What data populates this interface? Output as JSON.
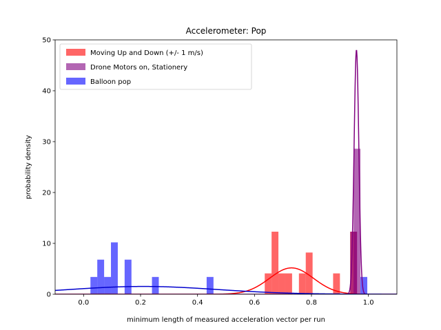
{
  "chart_data": {
    "type": "bar",
    "title": "Accelerometer: Pop",
    "xlabel": "minimum length of measured acceleration vector per run",
    "ylabel": "probability density",
    "xlim": [
      -0.1,
      1.1
    ],
    "ylim": [
      0,
      50
    ],
    "xticks": [
      "0.0",
      "0.2",
      "0.4",
      "0.6",
      "0.8",
      "1.0"
    ],
    "yticks": [
      "0",
      "10",
      "20",
      "30",
      "40",
      "50"
    ],
    "grid": false,
    "legend_position": "top-left",
    "bin_width": 0.024,
    "series": [
      {
        "name": "Moving Up and Down (+/- 1 m/s)",
        "kind": "histogram",
        "color": "#ff0000",
        "bins": [
          {
            "x0": 0.636,
            "height": 4.1
          },
          {
            "x0": 0.66,
            "height": 12.3
          },
          {
            "x0": 0.684,
            "height": 4.1
          },
          {
            "x0": 0.708,
            "height": 4.1
          },
          {
            "x0": 0.756,
            "height": 4.1
          },
          {
            "x0": 0.78,
            "height": 8.2
          },
          {
            "x0": 0.876,
            "height": 4.1
          },
          {
            "x0": 0.936,
            "height": 12.3
          }
        ]
      },
      {
        "name": "Drone Motors on, Stationery",
        "kind": "histogram",
        "color": "#800080",
        "bins": [
          {
            "x0": 0.936,
            "height": 12.3
          },
          {
            "x0": 0.948,
            "height": 28.6
          }
        ]
      },
      {
        "name": "Balloon pop",
        "kind": "histogram",
        "color": "#0000ff",
        "bins": [
          {
            "x0": 0.024,
            "height": 3.4
          },
          {
            "x0": 0.048,
            "height": 6.8
          },
          {
            "x0": 0.072,
            "height": 3.4
          },
          {
            "x0": 0.096,
            "height": 10.2
          },
          {
            "x0": 0.144,
            "height": 6.8
          },
          {
            "x0": 0.24,
            "height": 3.4
          },
          {
            "x0": 0.432,
            "height": 3.4
          },
          {
            "x0": 0.972,
            "height": 3.4
          }
        ]
      }
    ],
    "fit_curves": [
      {
        "color": "#ff0000",
        "mean": 0.73,
        "std": 0.077
      },
      {
        "color": "#800080",
        "mean": 0.958,
        "std": 0.0083
      },
      {
        "color": "#0000cd",
        "mean": 0.21,
        "std": 0.26
      }
    ]
  }
}
